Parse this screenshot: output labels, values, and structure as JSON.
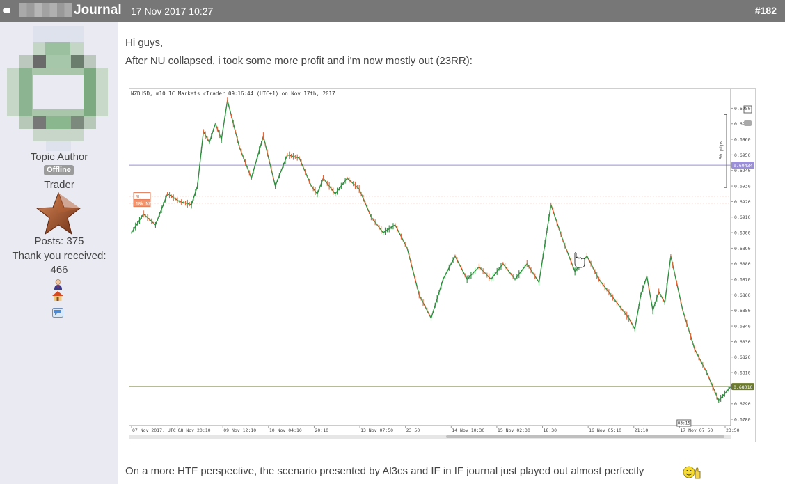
{
  "header": {
    "username": "",
    "title": "Journal",
    "datetime": "17 Nov 2017 10:27",
    "post_number": "#182"
  },
  "sidebar": {
    "role": "Topic Author",
    "status_badge": "Offline",
    "rank": "Trader",
    "posts_label": "Posts: 375",
    "thanks_label": "Thank you received:",
    "thanks_count": "466",
    "icons": [
      "user-profile-icon",
      "home-icon",
      "message-icon"
    ]
  },
  "post": {
    "greeting": "Hi guys,",
    "line1": "After NU collapsed, i took some more profit and i'm now mostly out (23RR):",
    "line2": "On a more HTF perspective, the scenario presented by Al3cs and IF in IF journal just played out almost perfectly"
  },
  "chart_data": {
    "type": "line",
    "title": "NZDUSD, m10 IC Markets cTrader 09:16:44 (UTC+1) on Nov 17th, 2017",
    "x_ticks": [
      "07 Nov 2017, UTC+1",
      "08 Nov 20:10",
      "09 Nov 12:10",
      "10 Nov 04:10",
      "20:10",
      "13 Nov 07:50",
      "23:50",
      "14 Nov 10:30",
      "15 Nov 02:30",
      "18:30",
      "16 Nov 05:10",
      "21:10",
      "17 Nov 07:50",
      "23:50"
    ],
    "y_ticks": [
      "0.6980",
      "0.6970",
      "0.6960",
      "0.6950",
      "0.6940",
      "0.6930",
      "0.6920",
      "0.6910",
      "0.6900",
      "0.6890",
      "0.6880",
      "0.6870",
      "0.6860",
      "0.6850",
      "0.6840",
      "0.6830",
      "0.6820",
      "0.6810",
      "0.6790",
      "0.6780"
    ],
    "ylim": [
      0.6776,
      0.6986
    ],
    "h_lines": [
      {
        "label": "0.69434",
        "value": 0.69434,
        "color": "#9a8fd8"
      },
      {
        "label": "SL",
        "value": 0.69235,
        "color": "#e57d5a"
      },
      {
        "label": "18k NZD",
        "value": 0.6919,
        "color": "#e57d5a"
      },
      {
        "label": "0.68010",
        "value": 0.6801,
        "color": "#6b7a2c"
      }
    ],
    "side_label": "50 pips",
    "time_marker": "03:15",
    "series": [
      {
        "x": [
          0,
          2,
          4,
          6,
          8,
          10,
          11,
          12,
          13,
          14,
          15,
          16,
          18,
          20,
          22,
          24,
          26,
          28,
          30,
          31,
          32,
          34,
          36,
          38,
          40,
          42,
          44,
          46,
          48,
          50,
          52,
          54,
          56,
          58,
          60,
          62,
          64,
          66,
          68,
          70,
          72,
          74,
          76,
          78,
          80,
          82,
          83,
          84,
          85,
          86,
          87,
          88,
          89,
          90,
          92,
          94,
          96,
          98,
          100
        ],
        "y": [
          0.69,
          0.6912,
          0.6905,
          0.6925,
          0.692,
          0.6918,
          0.693,
          0.6965,
          0.6958,
          0.697,
          0.696,
          0.6985,
          0.6955,
          0.6935,
          0.6962,
          0.693,
          0.695,
          0.6948,
          0.693,
          0.6925,
          0.6935,
          0.6925,
          0.6935,
          0.6928,
          0.691,
          0.69,
          0.6905,
          0.689,
          0.686,
          0.6845,
          0.687,
          0.6885,
          0.687,
          0.6878,
          0.687,
          0.688,
          0.687,
          0.688,
          0.6868,
          0.6918,
          0.6895,
          0.6875,
          0.6885,
          0.687,
          0.686,
          0.685,
          0.6845,
          0.6838,
          0.686,
          0.6872,
          0.685,
          0.6862,
          0.6855,
          0.6885,
          0.685,
          0.6825,
          0.681,
          0.6792,
          0.6801
        ]
      }
    ]
  }
}
